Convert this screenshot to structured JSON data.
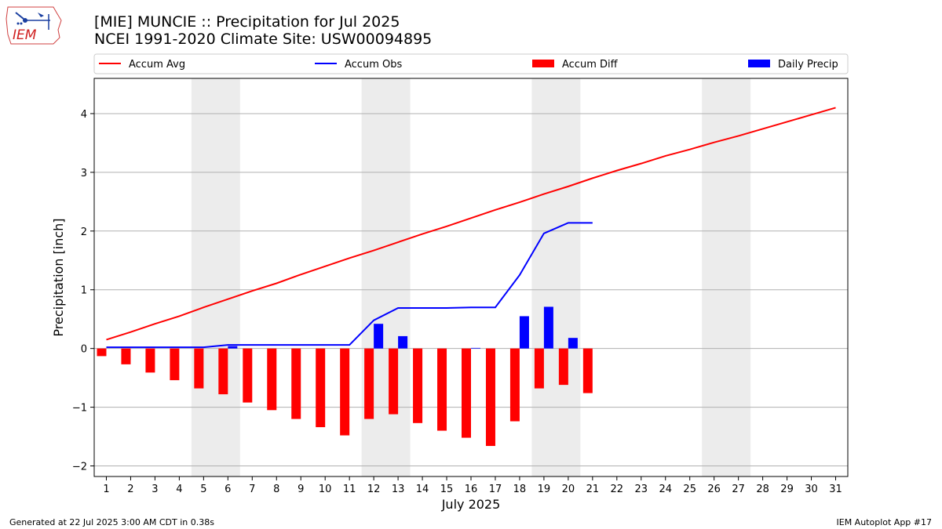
{
  "logo": {
    "text": "IEM"
  },
  "title": {
    "line1": "[MIE] MUNCIE :: Precipitation for Jul 2025",
    "line2": "NCEI 1991-2020 Climate Site: USW00094895"
  },
  "footer": {
    "left": "Generated at 22 Jul 2025 3:00 AM CDT in 0.38s",
    "right": "IEM Autoplot App #17"
  },
  "colors": {
    "avg": "#ff0000",
    "obs": "#0000ff",
    "diff": "#ff0000",
    "daily": "#0000ff",
    "weekend": "#ececec",
    "grid": "#b0b0b0"
  },
  "chart_data": {
    "type": "bar",
    "xlabel": "July 2025",
    "ylabel": "Precipitation [inch]",
    "xlim": [
      0.5,
      31.5
    ],
    "ylim": [
      -2.18,
      4.6
    ],
    "x_ticks": [
      1,
      2,
      3,
      4,
      5,
      6,
      7,
      8,
      9,
      10,
      11,
      12,
      13,
      14,
      15,
      16,
      17,
      18,
      19,
      20,
      21,
      22,
      23,
      24,
      25,
      26,
      27,
      28,
      29,
      30,
      31
    ],
    "y_ticks": [
      -2,
      -1,
      0,
      1,
      2,
      3,
      4
    ],
    "y_tick_labels": [
      "−2",
      "−1",
      "0",
      "1",
      "2",
      "3",
      "4"
    ],
    "grid": "horizontal",
    "legend_position": "top",
    "weekend_spans": [
      [
        5,
        6
      ],
      [
        12,
        13
      ],
      [
        19,
        20
      ],
      [
        26,
        27
      ]
    ],
    "series": [
      {
        "name": "Accum Avg",
        "kind": "line",
        "x": [
          1,
          2,
          3,
          4,
          5,
          6,
          7,
          8,
          9,
          10,
          11,
          12,
          13,
          14,
          15,
          16,
          17,
          18,
          19,
          20,
          21,
          22,
          23,
          24,
          25,
          26,
          27,
          28,
          29,
          30,
          31
        ],
        "values": [
          0.15,
          0.28,
          0.42,
          0.55,
          0.7,
          0.84,
          0.98,
          1.11,
          1.26,
          1.4,
          1.54,
          1.67,
          1.81,
          1.95,
          2.08,
          2.22,
          2.36,
          2.49,
          2.63,
          2.76,
          2.9,
          3.03,
          3.15,
          3.28,
          3.39,
          3.51,
          3.62,
          3.74,
          3.86,
          3.98,
          4.1
        ]
      },
      {
        "name": "Accum Obs",
        "kind": "line",
        "x": [
          1,
          2,
          3,
          4,
          5,
          6,
          7,
          8,
          9,
          10,
          11,
          12,
          13,
          14,
          15,
          16,
          17,
          18,
          19,
          20,
          21
        ],
        "values": [
          0.02,
          0.02,
          0.02,
          0.02,
          0.02,
          0.06,
          0.06,
          0.06,
          0.06,
          0.06,
          0.06,
          0.48,
          0.69,
          0.69,
          0.69,
          0.7,
          0.7,
          1.25,
          1.96,
          2.14,
          2.14
        ]
      },
      {
        "name": "Accum Diff",
        "kind": "bar",
        "x": [
          1,
          2,
          3,
          4,
          5,
          6,
          7,
          8,
          9,
          10,
          11,
          12,
          13,
          14,
          15,
          16,
          17,
          18,
          19,
          20,
          21
        ],
        "values": [
          -0.13,
          -0.27,
          -0.41,
          -0.54,
          -0.68,
          -0.78,
          -0.92,
          -1.05,
          -1.2,
          -1.34,
          -1.48,
          -1.2,
          -1.12,
          -1.27,
          -1.4,
          -1.52,
          -1.66,
          -1.24,
          -0.68,
          -0.62,
          -0.76
        ]
      },
      {
        "name": "Daily Precip",
        "kind": "bar",
        "x": [
          1,
          2,
          3,
          4,
          5,
          6,
          7,
          8,
          9,
          10,
          11,
          12,
          13,
          14,
          15,
          16,
          17,
          18,
          19,
          20,
          21
        ],
        "values": [
          0,
          0,
          0,
          0,
          0,
          0.04,
          0,
          0,
          0,
          0,
          0,
          0.42,
          0.21,
          0,
          0,
          0.01,
          0,
          0.55,
          0.71,
          0.18,
          0
        ]
      }
    ]
  }
}
